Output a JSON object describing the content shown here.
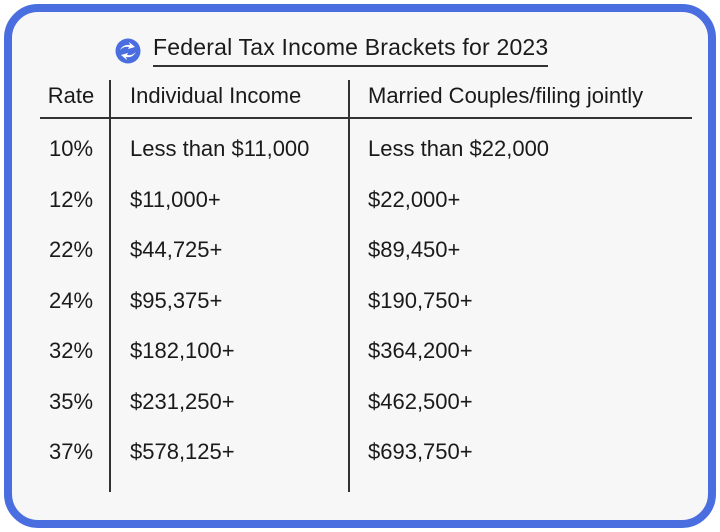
{
  "title": "Federal Tax Income Brackets for 2023",
  "colors": {
    "border": "#4a6ee0",
    "logo": "#4a6ee0"
  },
  "headers": {
    "rate": "Rate",
    "individual": "Individual Income",
    "married": "Married Couples/filing jointly"
  },
  "rows": [
    {
      "rate": "10%",
      "individual": "Less than $11,000",
      "married": "Less than $22,000"
    },
    {
      "rate": "12%",
      "individual": "$11,000+",
      "married": "$22,000+"
    },
    {
      "rate": "22%",
      "individual": "$44,725+",
      "married": "$89,450+"
    },
    {
      "rate": "24%",
      "individual": "$95,375+",
      "married": "$190,750+"
    },
    {
      "rate": "32%",
      "individual": "$182,100+",
      "married": "$364,200+"
    },
    {
      "rate": "35%",
      "individual": "$231,250+",
      "married": "$462,500+"
    },
    {
      "rate": "37%",
      "individual": "$578,125+",
      "married": "$693,750+"
    }
  ]
}
